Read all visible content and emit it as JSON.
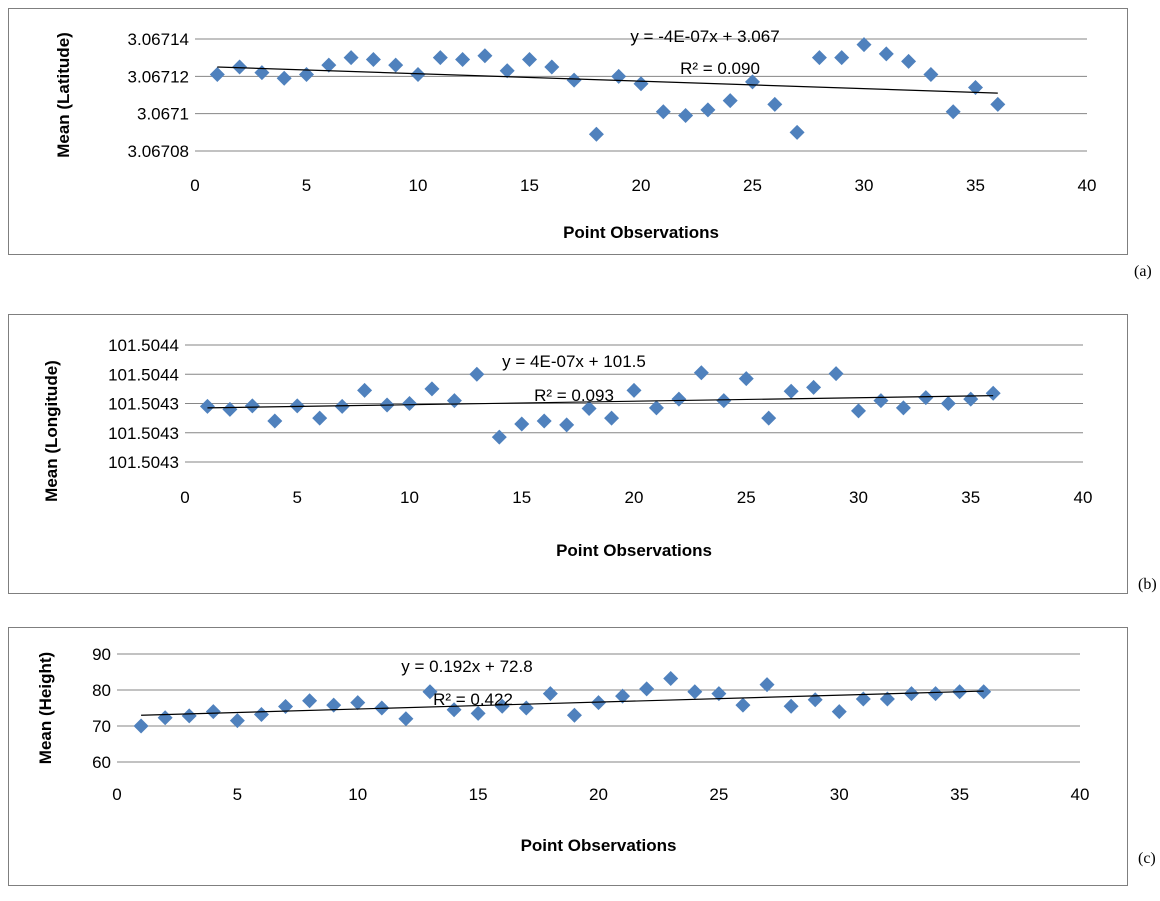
{
  "chart_data": [
    {
      "type": "scatter",
      "panel_label": "(a)",
      "xlabel": "Point Observations",
      "ylabel": "Mean (Latitude)",
      "xlim": [
        0,
        40
      ],
      "ylim": [
        3.06708,
        3.06714
      ],
      "xticks": [
        "0",
        "5",
        "10",
        "15",
        "20",
        "25",
        "30",
        "35",
        "40"
      ],
      "yticks": [
        "3.06708",
        "3.0671",
        "3.06712",
        "3.06714"
      ],
      "grid": true,
      "marker_color": "#4f81bd",
      "trendline": {
        "equation": "y = -4E-07x + 3.067",
        "r2": "R² = 0.090",
        "y_start": 3.067125,
        "y_end": 3.067111
      },
      "x": [
        1,
        2,
        3,
        4,
        5,
        6,
        7,
        8,
        9,
        10,
        11,
        12,
        13,
        14,
        15,
        16,
        17,
        18,
        19,
        20,
        21,
        22,
        23,
        24,
        25,
        26,
        27,
        28,
        29,
        30,
        31,
        32,
        33,
        34,
        35,
        36
      ],
      "y": [
        3.067121,
        3.067125,
        3.067122,
        3.067119,
        3.067121,
        3.067126,
        3.06713,
        3.067129,
        3.067126,
        3.067121,
        3.06713,
        3.067129,
        3.067131,
        3.067123,
        3.067129,
        3.067125,
        3.067118,
        3.067089,
        3.06712,
        3.067116,
        3.067101,
        3.067099,
        3.067102,
        3.067107,
        3.067117,
        3.067105,
        3.06709,
        3.06713,
        3.06713,
        3.067137,
        3.067132,
        3.067128,
        3.067121,
        3.067101,
        3.067114,
        3.067105
      ]
    },
    {
      "type": "scatter",
      "panel_label": "(b)",
      "xlabel": "Point Observations",
      "ylabel": "Mean (Longitude)",
      "xlim": [
        0,
        40
      ],
      "ylim": [
        0,
        4
      ],
      "xticks": [
        "0",
        "5",
        "10",
        "15",
        "20",
        "25",
        "30",
        "35",
        "40"
      ],
      "yticks": [
        "101.5043",
        "101.5043",
        "101.5043",
        "101.5044",
        "101.5044"
      ],
      "grid": true,
      "marker_color": "#4f81bd",
      "trendline": {
        "equation": "y = 4E-07x + 101.5",
        "r2": "R² = 0.093",
        "y_start": 1.85,
        "y_end": 2.27
      },
      "x": [
        1,
        2,
        3,
        4,
        5,
        6,
        7,
        8,
        9,
        10,
        11,
        12,
        13,
        14,
        15,
        16,
        17,
        18,
        19,
        20,
        21,
        22,
        23,
        24,
        25,
        26,
        27,
        28,
        29,
        30,
        31,
        32,
        33,
        34,
        35,
        36
      ],
      "y": [
        1.9,
        1.8,
        1.92,
        1.4,
        1.92,
        1.5,
        1.9,
        2.45,
        1.95,
        2.0,
        2.5,
        2.1,
        3.0,
        0.85,
        1.3,
        1.4,
        1.27,
        1.83,
        1.5,
        2.45,
        1.85,
        2.15,
        3.05,
        2.1,
        2.85,
        1.5,
        2.42,
        2.55,
        3.02,
        1.75,
        2.1,
        1.85,
        2.2,
        2.0,
        2.15,
        2.35
      ]
    },
    {
      "type": "scatter",
      "panel_label": "(c)",
      "xlabel": "Point Observations",
      "ylabel": "Mean (Height)",
      "xlim": [
        0,
        40
      ],
      "ylim": [
        60,
        90
      ],
      "xticks": [
        "0",
        "5",
        "10",
        "15",
        "20",
        "25",
        "30",
        "35",
        "40"
      ],
      "yticks": [
        "60",
        "70",
        "80",
        "90"
      ],
      "grid": true,
      "marker_color": "#4f81bd",
      "trendline": {
        "equation": "y = 0.192x + 72.8",
        "r2": "R² = 0.422",
        "y_start": 72.99,
        "y_end": 79.71
      },
      "x": [
        1,
        2,
        3,
        4,
        5,
        6,
        7,
        8,
        9,
        10,
        11,
        12,
        13,
        14,
        15,
        16,
        17,
        18,
        19,
        20,
        21,
        22,
        23,
        24,
        25,
        26,
        27,
        28,
        29,
        30,
        31,
        32,
        33,
        34,
        35,
        36
      ],
      "y": [
        70,
        72.3,
        72.8,
        74,
        71.5,
        73.2,
        75.4,
        77,
        75.8,
        76.5,
        75,
        72,
        79.5,
        74.5,
        73.5,
        75.5,
        75,
        79,
        73,
        76.5,
        78.3,
        80.3,
        83.2,
        79.5,
        79,
        75.8,
        81.5,
        75.5,
        77.3,
        74,
        77.5,
        77.5,
        79,
        79,
        79.5,
        79.5
      ]
    }
  ]
}
